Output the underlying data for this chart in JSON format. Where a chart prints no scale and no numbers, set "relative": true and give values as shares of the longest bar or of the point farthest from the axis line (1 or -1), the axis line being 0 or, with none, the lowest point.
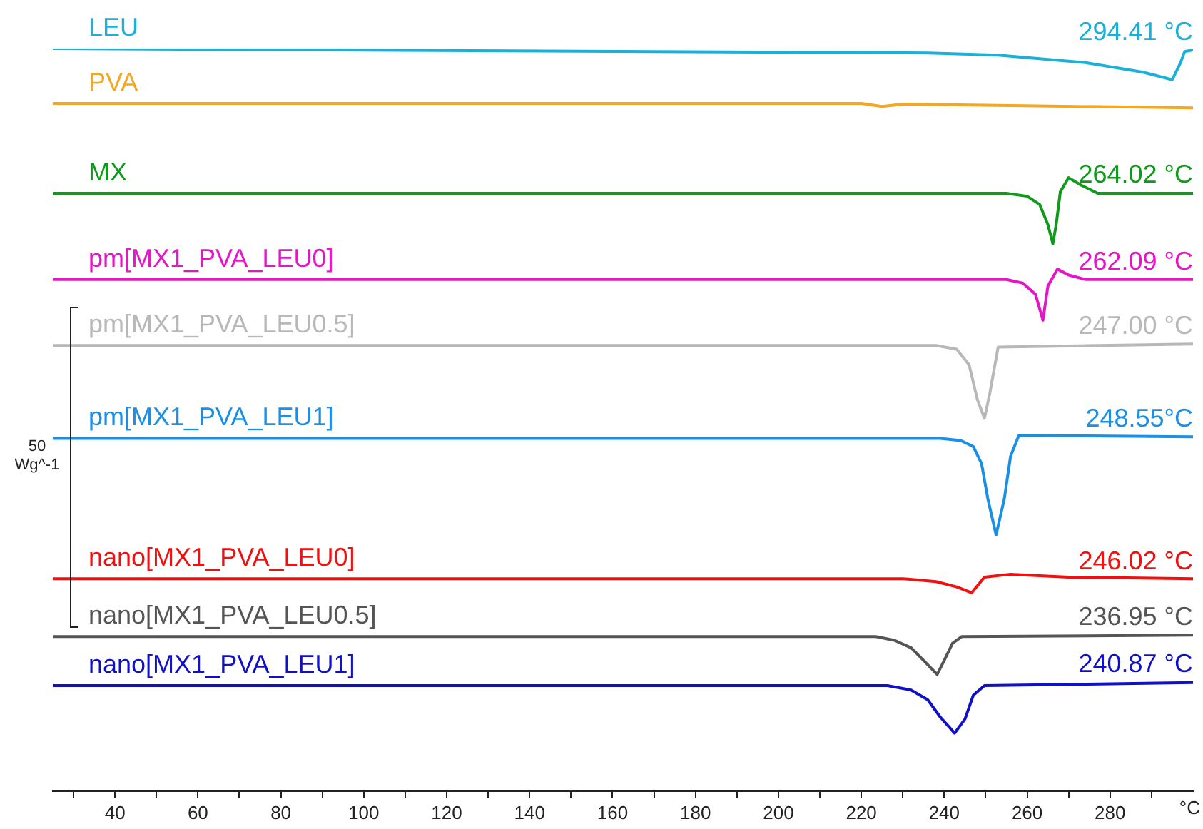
{
  "chart_data": {
    "type": "line",
    "relative": true,
    "xlabel": "°C",
    "xlim": [
      25,
      300
    ],
    "xticks": [
      {
        "value": 30,
        "label": null
      },
      40,
      {
        "value": 50,
        "label": null
      },
      60,
      {
        "value": 70,
        "label": null
      },
      80,
      {
        "value": 90,
        "label": null
      },
      100,
      {
        "value": 110,
        "label": null
      },
      120,
      {
        "value": 130,
        "label": null
      },
      140,
      {
        "value": 150,
        "label": null
      },
      160,
      {
        "value": 170,
        "label": null
      },
      180,
      {
        "value": 190,
        "label": null
      },
      200,
      {
        "value": 210,
        "label": null
      },
      220,
      {
        "value": 230,
        "label": null
      },
      240,
      {
        "value": 250,
        "label": null
      },
      260,
      {
        "value": 270,
        "label": null
      },
      280,
      {
        "value": 290,
        "label": null
      }
    ],
    "grid": false,
    "legend": false,
    "marker": "none",
    "line_style": "solid",
    "series": [
      {
        "name": "LEU",
        "color": "#1ab0d8",
        "x": [
          25,
          236,
          253,
          274,
          288,
          295,
          297,
          298,
          300
        ],
        "values": [
          1.0,
          0.994,
          0.991,
          0.981,
          0.968,
          0.958,
          0.981,
          0.996,
          0.998
        ]
      },
      {
        "name": "PVA",
        "color": "#f5a623",
        "x": [
          25,
          220,
          225,
          230,
          300
        ],
        "values": [
          0.926,
          0.926,
          0.922,
          0.925,
          0.92
        ]
      },
      {
        "name": "MX",
        "color": "#109a1c",
        "x": [
          25,
          255,
          260,
          263,
          265,
          266.2,
          267,
          268,
          270,
          273,
          277,
          300
        ],
        "values": [
          0.805,
          0.805,
          0.801,
          0.79,
          0.763,
          0.737,
          0.763,
          0.807,
          0.826,
          0.816,
          0.805,
          0.805
        ]
      },
      {
        "name": "pm[MX1_PVA_LEU0]",
        "color": "#e815c8",
        "x": [
          25,
          255,
          259,
          262,
          263.8,
          265,
          267.3,
          270,
          274,
          300
        ],
        "values": [
          0.689,
          0.689,
          0.684,
          0.669,
          0.634,
          0.68,
          0.703,
          0.695,
          0.689,
          0.689
        ]
      },
      {
        "name": "pm[MX1_PVA_LEU0.5]",
        "color": "#b8b8b8",
        "x": [
          25,
          238,
          243,
          246,
          248,
          249.7,
          251,
          253,
          300
        ],
        "values": [
          0.6,
          0.6,
          0.595,
          0.574,
          0.527,
          0.502,
          0.536,
          0.598,
          0.602
        ]
      },
      {
        "name": "pm[MX1_PVA_LEU1]",
        "color": "#1a8fe8",
        "x": [
          25,
          239,
          244,
          247,
          249,
          250.5,
          252.5,
          254.5,
          256,
          258,
          300
        ],
        "values": [
          0.475,
          0.475,
          0.472,
          0.464,
          0.441,
          0.394,
          0.345,
          0.394,
          0.451,
          0.479,
          0.477
        ]
      },
      {
        "name": "nano[MX1_PVA_LEU0]",
        "color": "#f01010",
        "x": [
          25,
          230,
          238,
          243,
          246.6,
          249.7,
          256,
          270,
          300
        ],
        "values": [
          0.286,
          0.286,
          0.282,
          0.275,
          0.267,
          0.288,
          0.292,
          0.288,
          0.286
        ]
      },
      {
        "name": "nano[MX1_PVA_LEU0.5]",
        "color": "#555555",
        "x": [
          25,
          223.5,
          228,
          232,
          235,
          238.3,
          240,
          242,
          244.2,
          300
        ],
        "values": [
          0.208,
          0.208,
          0.203,
          0.193,
          0.176,
          0.157,
          0.176,
          0.199,
          0.208,
          0.21
        ]
      },
      {
        "name": "nano[MX1_PVA_LEU1]",
        "color": "#1010c8",
        "x": [
          25,
          226.3,
          232,
          236,
          239,
          242.5,
          245,
          247,
          249.7,
          300
        ],
        "values": [
          0.142,
          0.142,
          0.136,
          0.123,
          0.1,
          0.078,
          0.097,
          0.129,
          0.142,
          0.146
        ]
      }
    ],
    "annotations": [
      "294.41 °C",
      "264.02 °C",
      "262.09 °C",
      "247.00 °C",
      "248.55°C",
      "246.02 °C",
      "236.95 °C",
      "240.87 °C",
      "50",
      "Wg^-1"
    ]
  }
}
